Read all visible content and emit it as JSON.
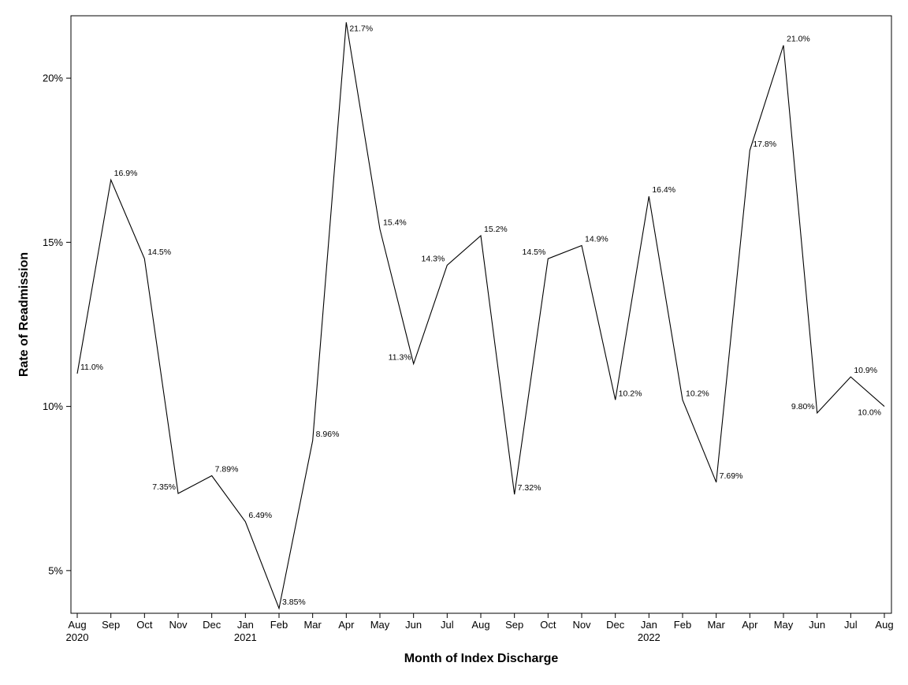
{
  "chart_data": {
    "type": "line",
    "xlabel": "Month of Index Discharge",
    "ylabel": "Rate of Readmission",
    "ylim": [
      3.7,
      21.9
    ],
    "y_ticks": [
      {
        "value": 5,
        "label": "5%"
      },
      {
        "value": 10,
        "label": "10%"
      },
      {
        "value": 15,
        "label": "15%"
      },
      {
        "value": 20,
        "label": "20%"
      }
    ],
    "grid": false,
    "categories": [
      {
        "month": "Aug",
        "year": "2020"
      },
      {
        "month": "Sep",
        "year": ""
      },
      {
        "month": "Oct",
        "year": ""
      },
      {
        "month": "Nov",
        "year": ""
      },
      {
        "month": "Dec",
        "year": ""
      },
      {
        "month": "Jan",
        "year": "2021"
      },
      {
        "month": "Feb",
        "year": ""
      },
      {
        "month": "Mar",
        "year": ""
      },
      {
        "month": "Apr",
        "year": ""
      },
      {
        "month": "May",
        "year": ""
      },
      {
        "month": "Jun",
        "year": ""
      },
      {
        "month": "Jul",
        "year": ""
      },
      {
        "month": "Aug",
        "year": ""
      },
      {
        "month": "Sep",
        "year": ""
      },
      {
        "month": "Oct",
        "year": ""
      },
      {
        "month": "Nov",
        "year": ""
      },
      {
        "month": "Dec",
        "year": ""
      },
      {
        "month": "Jan",
        "year": "2022"
      },
      {
        "month": "Feb",
        "year": ""
      },
      {
        "month": "Mar",
        "year": ""
      },
      {
        "month": "Apr",
        "year": ""
      },
      {
        "month": "May",
        "year": ""
      },
      {
        "month": "Jun",
        "year": ""
      },
      {
        "month": "Jul",
        "year": ""
      },
      {
        "month": "Aug",
        "year": ""
      }
    ],
    "series": [
      {
        "values": [
          11.0,
          16.9,
          14.5,
          7.35,
          7.89,
          6.49,
          3.85,
          8.96,
          21.7,
          15.4,
          11.3,
          14.3,
          15.2,
          7.32,
          14.5,
          14.9,
          10.2,
          16.4,
          10.2,
          7.69,
          17.8,
          21.0,
          9.8,
          10.9,
          10.0
        ],
        "labels": [
          "11.0%",
          "16.9%",
          "14.5%",
          "7.35%",
          "7.89%",
          "6.49%",
          "3.85%",
          "8.96%",
          "21.7%",
          "15.4%",
          "11.3%",
          "14.3%",
          "15.2%",
          "7.32%",
          "14.5%",
          "14.9%",
          "10.2%",
          "16.4%",
          "10.2%",
          "7.69%",
          "17.8%",
          "21.0%",
          "9.80%",
          "10.9%",
          "10.0%"
        ],
        "label_side": [
          "right",
          "right",
          "right",
          "left",
          "right",
          "right",
          "right",
          "right",
          "right",
          "right",
          "left",
          "left",
          "right",
          "right",
          "left",
          "right",
          "right",
          "right",
          "right",
          "right",
          "right",
          "right",
          "left",
          "right",
          "left-below"
        ],
        "color": "#000000"
      }
    ]
  }
}
